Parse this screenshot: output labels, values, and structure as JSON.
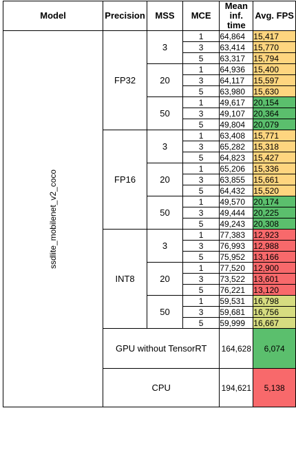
{
  "headers": {
    "model": "Model",
    "precision": "Precision",
    "mss": "MSS",
    "mce": "MCE",
    "mean_time": "Mean inf. time",
    "avg_fps": "Avg. FPS"
  },
  "model_name": "ssdlite_mobilenet_v2_coco",
  "colors": {
    "yellow": "#fed57f",
    "green": "#5bbf6d",
    "red": "#f8696b",
    "light_green": "#c7da80",
    "yellow_green": "#d6dc80"
  },
  "groups": [
    {
      "precision": "FP32",
      "subgroups": [
        {
          "mss": "3",
          "rows": [
            {
              "mce": "1",
              "time": "64,864",
              "fps": "15,417",
              "color": "#fed57f"
            },
            {
              "mce": "3",
              "time": "63,414",
              "fps": "15,770",
              "color": "#fed57f"
            },
            {
              "mce": "5",
              "time": "63,317",
              "fps": "15,794",
              "color": "#fed57f"
            }
          ]
        },
        {
          "mss": "20",
          "rows": [
            {
              "mce": "1",
              "time": "64,936",
              "fps": "15,400",
              "color": "#fed57f"
            },
            {
              "mce": "3",
              "time": "64,117",
              "fps": "15,597",
              "color": "#fed57f"
            },
            {
              "mce": "5",
              "time": "63,980",
              "fps": "15,630",
              "color": "#fed57f"
            }
          ]
        },
        {
          "mss": "50",
          "rows": [
            {
              "mce": "1",
              "time": "49,617",
              "fps": "20,154",
              "color": "#5bbf6d"
            },
            {
              "mce": "3",
              "time": "49,107",
              "fps": "20,364",
              "color": "#5bbf6d"
            },
            {
              "mce": "5",
              "time": "49,804",
              "fps": "20,079",
              "color": "#5bbf6d"
            }
          ]
        }
      ]
    },
    {
      "precision": "FP16",
      "subgroups": [
        {
          "mss": "3",
          "rows": [
            {
              "mce": "1",
              "time": "63,408",
              "fps": "15,771",
              "color": "#fed57f"
            },
            {
              "mce": "3",
              "time": "65,282",
              "fps": "15,318",
              "color": "#fed57f"
            },
            {
              "mce": "5",
              "time": "64,823",
              "fps": "15,427",
              "color": "#fed57f"
            }
          ]
        },
        {
          "mss": "20",
          "rows": [
            {
              "mce": "1",
              "time": "65,206",
              "fps": "15,336",
              "color": "#fed57f"
            },
            {
              "mce": "3",
              "time": "63,855",
              "fps": "15,661",
              "color": "#fed57f"
            },
            {
              "mce": "5",
              "time": "64,432",
              "fps": "15,520",
              "color": "#fed57f"
            }
          ]
        },
        {
          "mss": "50",
          "rows": [
            {
              "mce": "1",
              "time": "49,570",
              "fps": "20,174",
              "color": "#5bbf6d"
            },
            {
              "mce": "3",
              "time": "49,444",
              "fps": "20,225",
              "color": "#5bbf6d"
            },
            {
              "mce": "5",
              "time": "49,243",
              "fps": "20,308",
              "color": "#5bbf6d"
            }
          ]
        }
      ]
    },
    {
      "precision": "INT8",
      "subgroups": [
        {
          "mss": "3",
          "rows": [
            {
              "mce": "1",
              "time": "77,383",
              "fps": "12,923",
              "color": "#f8696b"
            },
            {
              "mce": "3",
              "time": "76,993",
              "fps": "12,988",
              "color": "#f8696b"
            },
            {
              "mce": "5",
              "time": "75,952",
              "fps": "13,166",
              "color": "#f8696b"
            }
          ]
        },
        {
          "mss": "20",
          "rows": [
            {
              "mce": "1",
              "time": "77,520",
              "fps": "12,900",
              "color": "#f8696b"
            },
            {
              "mce": "3",
              "time": "73,522",
              "fps": "13,601",
              "color": "#f8696b"
            },
            {
              "mce": "5",
              "time": "76,221",
              "fps": "13,120",
              "color": "#f8696b"
            }
          ]
        },
        {
          "mss": "50",
          "rows": [
            {
              "mce": "1",
              "time": "59,531",
              "fps": "16,798",
              "color": "#d6dc80"
            },
            {
              "mce": "3",
              "time": "59,681",
              "fps": "16,756",
              "color": "#d6dc80"
            },
            {
              "mce": "5",
              "time": "59,999",
              "fps": "16,667",
              "color": "#d6dc80"
            }
          ]
        }
      ]
    }
  ],
  "summary": [
    {
      "label": "GPU without TensorRT",
      "time": "164,628",
      "fps": "6,074",
      "color": "#5bbf6d"
    },
    {
      "label": "CPU",
      "time": "194,621",
      "fps": "5,138",
      "color": "#f8696b"
    }
  ]
}
